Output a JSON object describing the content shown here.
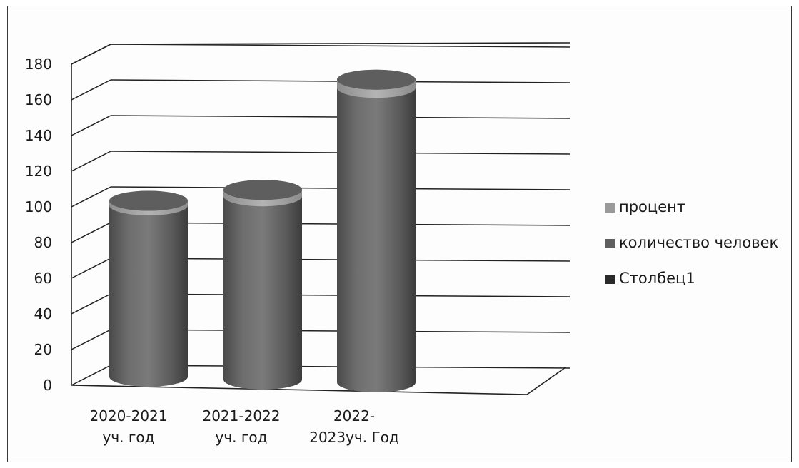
{
  "chart_data": {
    "type": "bar",
    "style": "3d-cylinder",
    "categories": [
      [
        "2020-2021",
        "уч. год"
      ],
      [
        "2021-2022",
        "уч. год"
      ],
      [
        "2022-",
        "2023уч. Год"
      ]
    ],
    "series": [
      {
        "name": "процент",
        "values": [
          1,
          2,
          3
        ],
        "color": "#9a9a9a"
      },
      {
        "name": "количество человек",
        "values": [
          100,
          107,
          172
        ],
        "color": "#5f5f5f"
      },
      {
        "name": "Столбец1",
        "values": [
          0,
          0,
          0
        ],
        "color": "#2a2a2a"
      }
    ],
    "ylim": [
      0,
      180
    ],
    "yticks": [
      "0",
      "20",
      "40",
      "60",
      "80",
      "100",
      "120",
      "140",
      "160",
      "180"
    ],
    "grid": true,
    "legend_position": "right"
  }
}
